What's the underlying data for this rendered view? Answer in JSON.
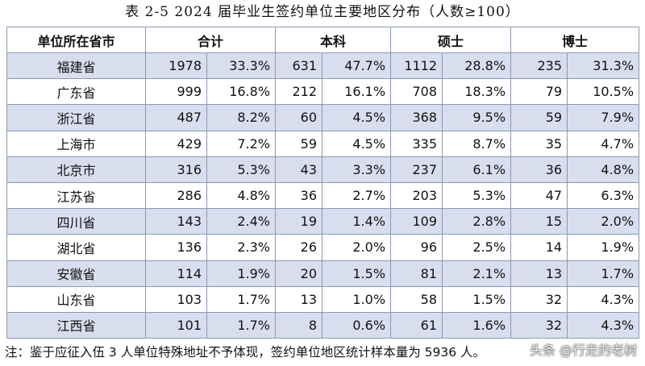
{
  "title": "表 2-5  2024 届毕业生签约单位主要地区分布（人数≥100）",
  "headers": {
    "province": "单位所在省市",
    "total": "合计",
    "bachelor": "本科",
    "master": "硕士",
    "doctor": "博士"
  },
  "rows": [
    {
      "province": "福建省",
      "total_n": "1978",
      "total_p": "33.3%",
      "b_n": "631",
      "b_p": "47.7%",
      "m_n": "1112",
      "m_p": "28.8%",
      "d_n": "235",
      "d_p": "31.3%"
    },
    {
      "province": "广东省",
      "total_n": "999",
      "total_p": "16.8%",
      "b_n": "212",
      "b_p": "16.1%",
      "m_n": "708",
      "m_p": "18.3%",
      "d_n": "79",
      "d_p": "10.5%"
    },
    {
      "province": "浙江省",
      "total_n": "487",
      "total_p": "8.2%",
      "b_n": "60",
      "b_p": "4.5%",
      "m_n": "368",
      "m_p": "9.5%",
      "d_n": "59",
      "d_p": "7.9%"
    },
    {
      "province": "上海市",
      "total_n": "429",
      "total_p": "7.2%",
      "b_n": "59",
      "b_p": "4.5%",
      "m_n": "335",
      "m_p": "8.7%",
      "d_n": "35",
      "d_p": "4.7%"
    },
    {
      "province": "北京市",
      "total_n": "316",
      "total_p": "5.3%",
      "b_n": "43",
      "b_p": "3.3%",
      "m_n": "237",
      "m_p": "6.1%",
      "d_n": "36",
      "d_p": "4.8%"
    },
    {
      "province": "江苏省",
      "total_n": "286",
      "total_p": "4.8%",
      "b_n": "36",
      "b_p": "2.7%",
      "m_n": "203",
      "m_p": "5.3%",
      "d_n": "47",
      "d_p": "6.3%"
    },
    {
      "province": "四川省",
      "total_n": "143",
      "total_p": "2.4%",
      "b_n": "19",
      "b_p": "1.4%",
      "m_n": "109",
      "m_p": "2.8%",
      "d_n": "15",
      "d_p": "2.0%"
    },
    {
      "province": "湖北省",
      "total_n": "136",
      "total_p": "2.3%",
      "b_n": "26",
      "b_p": "2.0%",
      "m_n": "96",
      "m_p": "2.5%",
      "d_n": "14",
      "d_p": "1.9%"
    },
    {
      "province": "安徽省",
      "total_n": "114",
      "total_p": "1.9%",
      "b_n": "20",
      "b_p": "1.5%",
      "m_n": "81",
      "m_p": "2.1%",
      "d_n": "13",
      "d_p": "1.7%"
    },
    {
      "province": "山东省",
      "total_n": "103",
      "total_p": "1.7%",
      "b_n": "13",
      "b_p": "1.0%",
      "m_n": "58",
      "m_p": "1.5%",
      "d_n": "32",
      "d_p": "4.3%"
    },
    {
      "province": "江西省",
      "total_n": "101",
      "total_p": "1.7%",
      "b_n": "8",
      "b_p": "0.6%",
      "m_n": "61",
      "m_p": "1.6%",
      "d_n": "32",
      "d_p": "4.3%"
    }
  ],
  "note": "注：鉴于应征入伍 3 人单位特殊地址不予体现，签约单位地区统计样本量为 5936 人。",
  "watermark": "头条 @行走的老树",
  "colors": {
    "stripe": "#d9deef",
    "border": "#8c97b3"
  }
}
